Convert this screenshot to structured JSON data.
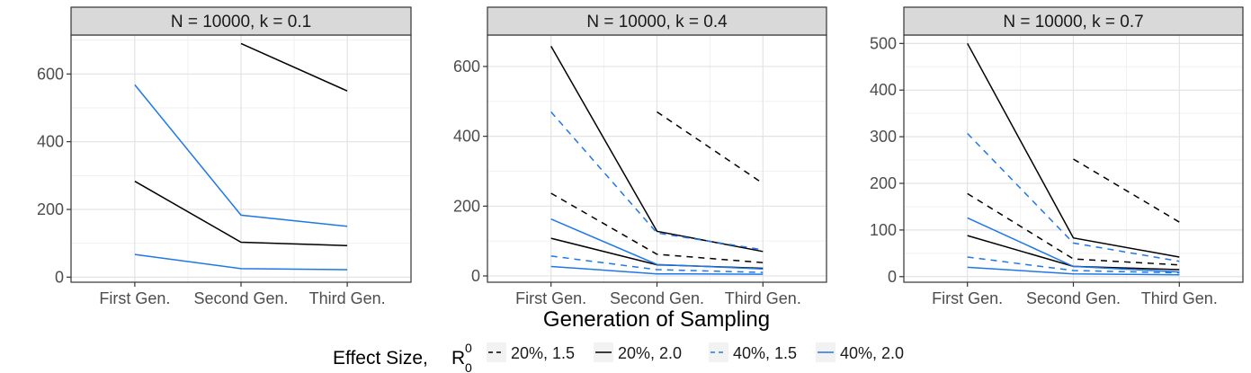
{
  "chart_data": {
    "type": "line",
    "xlabel": "Generation of Sampling",
    "categories": [
      "First Gen.",
      "Second Gen.",
      "Third Gen."
    ],
    "legend": {
      "title": "Effect Size,",
      "title_symbol": "R",
      "title_sup": "0",
      "title_sub": "0",
      "placement": "bottom",
      "entries": [
        {
          "label": "20%, 1.5",
          "color": "#000000",
          "dash": "dashed"
        },
        {
          "label": "20%, 2.0",
          "color": "#000000",
          "dash": "solid"
        },
        {
          "label": "40%, 1.5",
          "color": "#1f77e8",
          "dash": "dashed"
        },
        {
          "label": "40%, 2.0",
          "color": "#1f77e8",
          "dash": "solid"
        }
      ]
    },
    "panels": [
      {
        "title": "N = 10000, k = 0.1",
        "ylim": [
          -15,
          715
        ],
        "yticks": [
          0,
          200,
          400,
          600
        ],
        "series": [
          {
            "legend_index": 1,
            "points": [
              [
                1,
                283
              ],
              [
                2,
                103
              ],
              [
                3,
                93
              ]
            ]
          },
          {
            "legend_index": 1,
            "points": [
              [
                2,
                690
              ],
              [
                3,
                550
              ]
            ]
          },
          {
            "legend_index": 3,
            "points": [
              [
                1,
                568
              ],
              [
                2,
                183
              ],
              [
                3,
                150
              ]
            ]
          },
          {
            "legend_index": 3,
            "points": [
              [
                1,
                67
              ],
              [
                2,
                25
              ],
              [
                3,
                22
              ]
            ]
          }
        ]
      },
      {
        "title": "N = 10000, k = 0.4",
        "ylim": [
          -18,
          690
        ],
        "yticks": [
          0,
          200,
          400,
          600
        ],
        "series": [
          {
            "legend_index": 0,
            "points": [
              [
                1,
                237
              ],
              [
                2,
                62
              ],
              [
                3,
                38
              ]
            ]
          },
          {
            "legend_index": 0,
            "points": [
              [
                2,
                470
              ],
              [
                3,
                265
              ]
            ]
          },
          {
            "legend_index": 1,
            "points": [
              [
                1,
                658
              ],
              [
                2,
                128
              ],
              [
                3,
                70
              ]
            ]
          },
          {
            "legend_index": 1,
            "points": [
              [
                1,
                108
              ],
              [
                2,
                32
              ],
              [
                3,
                22
              ]
            ]
          },
          {
            "legend_index": 2,
            "points": [
              [
                1,
                470
              ],
              [
                2,
                123
              ],
              [
                3,
                75
              ]
            ]
          },
          {
            "legend_index": 2,
            "points": [
              [
                1,
                57
              ],
              [
                2,
                18
              ],
              [
                3,
                10
              ]
            ]
          },
          {
            "legend_index": 3,
            "points": [
              [
                1,
                163
              ],
              [
                2,
                33
              ],
              [
                3,
                20
              ]
            ]
          },
          {
            "legend_index": 3,
            "points": [
              [
                1,
                27
              ],
              [
                2,
                6
              ],
              [
                3,
                5
              ]
            ]
          }
        ]
      },
      {
        "title": "N = 10000, k = 0.7",
        "ylim": [
          -12,
          518
        ],
        "yticks": [
          0,
          100,
          200,
          300,
          400,
          500
        ],
        "series": [
          {
            "legend_index": 0,
            "points": [
              [
                1,
                178
              ],
              [
                2,
                38
              ],
              [
                3,
                25
              ]
            ]
          },
          {
            "legend_index": 0,
            "points": [
              [
                2,
                252
              ],
              [
                3,
                117
              ]
            ]
          },
          {
            "legend_index": 1,
            "points": [
              [
                1,
                500
              ],
              [
                2,
                83
              ],
              [
                3,
                42
              ]
            ]
          },
          {
            "legend_index": 1,
            "points": [
              [
                1,
                88
              ],
              [
                2,
                22
              ],
              [
                3,
                15
              ]
            ]
          },
          {
            "legend_index": 2,
            "points": [
              [
                1,
                307
              ],
              [
                2,
                72
              ],
              [
                3,
                33
              ]
            ]
          },
          {
            "legend_index": 2,
            "points": [
              [
                1,
                42
              ],
              [
                2,
                13
              ],
              [
                3,
                8
              ]
            ]
          },
          {
            "legend_index": 3,
            "points": [
              [
                1,
                126
              ],
              [
                2,
                22
              ],
              [
                3,
                10
              ]
            ]
          },
          {
            "legend_index": 3,
            "points": [
              [
                1,
                20
              ],
              [
                2,
                6
              ],
              [
                3,
                4
              ]
            ]
          }
        ]
      }
    ],
    "grid": true,
    "facet_strip_color": "#d9d9d9"
  }
}
